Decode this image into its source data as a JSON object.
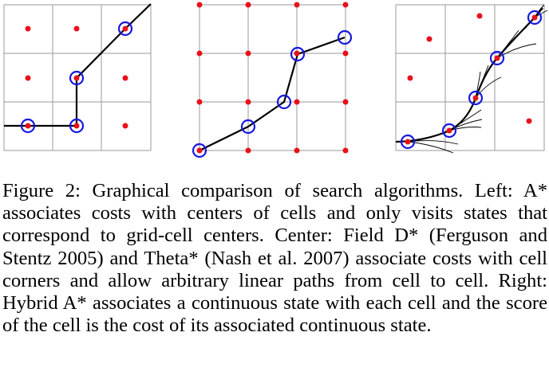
{
  "figure": {
    "panels": [
      {
        "name": "left",
        "description_hidden": true
      },
      {
        "name": "center",
        "description_hidden": true
      },
      {
        "name": "right",
        "description_hidden": true
      }
    ],
    "colors": {
      "grid": "#9a9a9a",
      "dot": "#e8101a",
      "ring": "#1818e0",
      "path": "#000000"
    }
  },
  "caption": {
    "text": "Figure 2: Graphical comparison of search algorithms. Left: A* associates costs with centers of cells and only visits states that correspond to grid-cell centers. Center: Field D* (Ferguson and Stentz 2005) and Theta* (Nash et al. 2007) associate costs with cell corners and allow arbitrary linear paths from cell to cell. Right: Hybrid A* associates a continuous state with each cell and the score of the cell is the cost of its associated continuous state."
  }
}
